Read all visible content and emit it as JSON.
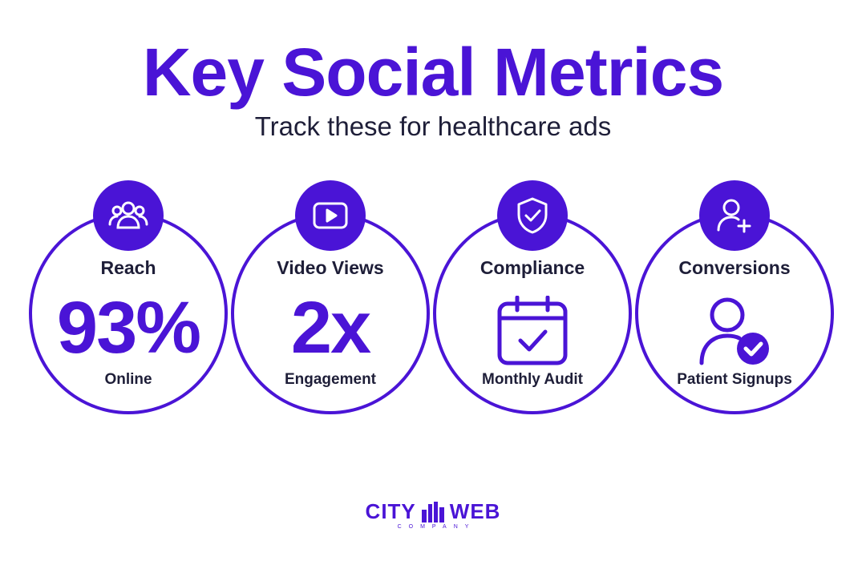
{
  "header": {
    "title": "Key Social Metrics",
    "subtitle": "Track these for healthcare ads"
  },
  "metrics": [
    {
      "label": "Reach",
      "value": "93%",
      "caption": "Online",
      "badge_icon": "people-group-icon"
    },
    {
      "label": "Video Views",
      "value": "2x",
      "caption": "Engagement",
      "badge_icon": "video-play-icon"
    },
    {
      "label": "Compliance",
      "caption": "Monthly Audit",
      "badge_icon": "shield-check-icon",
      "main_icon": "calendar-check-icon"
    },
    {
      "label": "Conversions",
      "caption": "Patient Signups",
      "badge_icon": "user-add-icon",
      "main_icon": "user-check-icon"
    }
  ],
  "logo": {
    "word1": "CITY",
    "word2": "WEB",
    "sub": "COMPANY"
  },
  "colors": {
    "accent": "#4a14d6",
    "text": "#1e1e38"
  }
}
